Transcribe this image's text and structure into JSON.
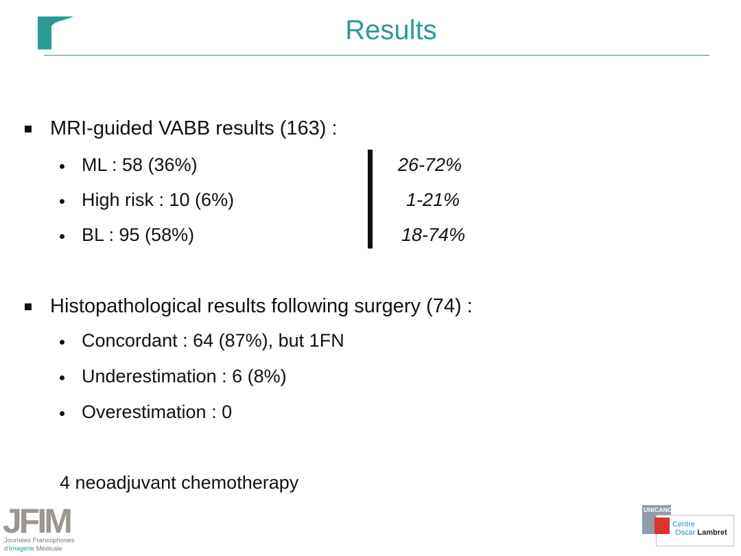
{
  "slide": {
    "title": "Results"
  },
  "section_vabb": {
    "heading": "MRI-guided VABB results  (163) :",
    "items": [
      {
        "label": "ML : 58 (36%)",
        "range": "26-72%"
      },
      {
        "label": "High risk : 10 (6%)",
        "range": "1-21%"
      },
      {
        "label": "BL : 95 (58%)",
        "range": "18-74%"
      }
    ]
  },
  "section_histo": {
    "heading": "Histopathological results following surgery (74) :",
    "items": [
      "Concordant : 64 (87%), but 1FN",
      "Underestimation : 6 (8%)",
      "Overestimation : 0"
    ]
  },
  "note": "4 neoadjuvant chemotherapy",
  "footer": {
    "jfim": {
      "logo": "JFIM",
      "line1": "Journées Francophones",
      "line2_prefix": "d'",
      "line2_highlight": "Imagerie",
      "line2_suffix": " Médicale"
    },
    "unicancer": "UNICANCER",
    "centre": {
      "line1": "Centre",
      "line2a": "Oscar",
      "line2b": "Lambret"
    }
  },
  "colors": {
    "accent": "#2a9a95",
    "text": "#111111"
  }
}
